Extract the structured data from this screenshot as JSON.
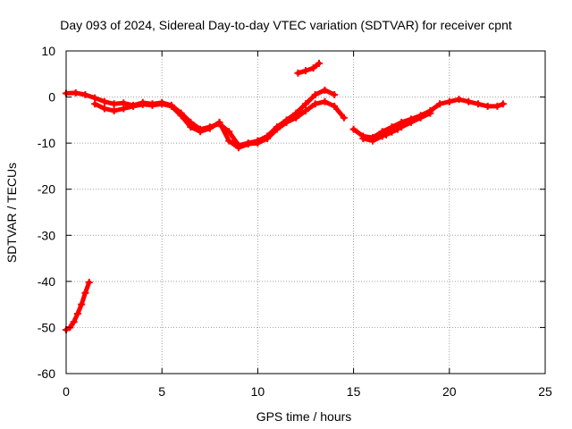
{
  "chart_data": {
    "type": "scatter",
    "title": "Day 093 of 2024, Sidereal Day-to-day VTEC variation (SDTVAR) for receiver cpnt",
    "xlabel": "GPS time / hours",
    "ylabel": "SDTVAR / TECUs",
    "xlim": [
      0,
      25
    ],
    "ylim": [
      -60,
      10
    ],
    "xticks": [
      0,
      5,
      10,
      15,
      20,
      25
    ],
    "yticks": [
      10,
      0,
      -10,
      -20,
      -30,
      -40,
      -50,
      -60
    ],
    "grid": true,
    "marker": "+",
    "series_color": "#ff0000",
    "series": [
      {
        "name": "track-main-upper",
        "x": [
          0.0,
          0.5,
          1.0,
          1.5,
          2.0,
          2.5,
          3.0,
          3.5,
          4.0,
          4.5,
          5.0,
          5.5,
          6.0,
          6.5,
          7.0,
          7.5,
          8.0,
          8.5,
          9.0,
          9.5,
          10.0,
          10.5,
          11.0,
          11.5,
          12.0,
          12.5,
          13.0,
          13.5,
          14.0
        ],
        "y": [
          0.8,
          0.9,
          0.5,
          -0.2,
          -1.0,
          -1.5,
          -1.3,
          -1.8,
          -1.2,
          -1.5,
          -1.2,
          -1.8,
          -3.5,
          -5.5,
          -7.0,
          -6.5,
          -5.8,
          -7.5,
          -10.5,
          -10.0,
          -9.5,
          -8.5,
          -6.5,
          -5.0,
          -3.5,
          -1.5,
          0.5,
          1.5,
          0.5
        ]
      },
      {
        "name": "track-main-lower",
        "x": [
          1.5,
          2.0,
          2.5,
          3.0,
          3.5,
          4.0,
          4.5,
          5.0,
          5.5,
          6.0,
          6.5,
          7.0,
          7.5,
          8.0,
          8.5,
          9.0,
          9.5,
          10.0,
          10.5,
          11.0,
          11.5,
          12.0,
          12.5,
          13.0,
          13.5,
          14.0,
          14.5
        ],
        "y": [
          -1.5,
          -2.5,
          -3.0,
          -2.5,
          -2.0,
          -1.6,
          -1.8,
          -1.5,
          -2.0,
          -4.0,
          -6.5,
          -7.5,
          -6.8,
          -5.5,
          -9.5,
          -11.0,
          -10.2,
          -10.0,
          -9.0,
          -7.0,
          -5.5,
          -4.5,
          -3.0,
          -1.5,
          -1.0,
          -2.0,
          -4.5
        ]
      },
      {
        "name": "track-afternoon",
        "x": [
          15.0,
          15.5,
          16.0,
          16.5,
          17.0,
          17.5,
          18.0,
          18.5,
          19.0,
          19.5,
          20.0,
          20.5,
          21.0,
          21.5,
          22.0,
          22.5,
          22.8
        ],
        "y": [
          -7.0,
          -8.5,
          -8.8,
          -7.5,
          -6.5,
          -5.5,
          -4.8,
          -4.0,
          -3.0,
          -1.5,
          -1.0,
          -0.5,
          -1.0,
          -1.5,
          -2.0,
          -2.0,
          -1.5
        ]
      },
      {
        "name": "track-afternoon-lower",
        "x": [
          15.5,
          16.0,
          16.5,
          17.0,
          17.5,
          18.0,
          18.5,
          19.0
        ],
        "y": [
          -9.0,
          -9.5,
          -8.5,
          -7.5,
          -6.5,
          -5.5,
          -4.5,
          -3.5
        ]
      },
      {
        "name": "track-short-high",
        "x": [
          12.1,
          12.5,
          12.9,
          13.2
        ],
        "y": [
          5.2,
          5.7,
          6.3,
          7.3
        ]
      },
      {
        "name": "track-short-low",
        "x": [
          16.7,
          17.0,
          17.3
        ],
        "y": [
          -8.2,
          -7.6,
          -7.0
        ]
      },
      {
        "name": "track-start-dip",
        "x": [
          0.0,
          0.2,
          0.4,
          0.6,
          0.8,
          1.0,
          1.2
        ],
        "y": [
          -50.5,
          -50.0,
          -48.8,
          -47.0,
          -45.0,
          -42.5,
          -40.2
        ]
      }
    ]
  }
}
